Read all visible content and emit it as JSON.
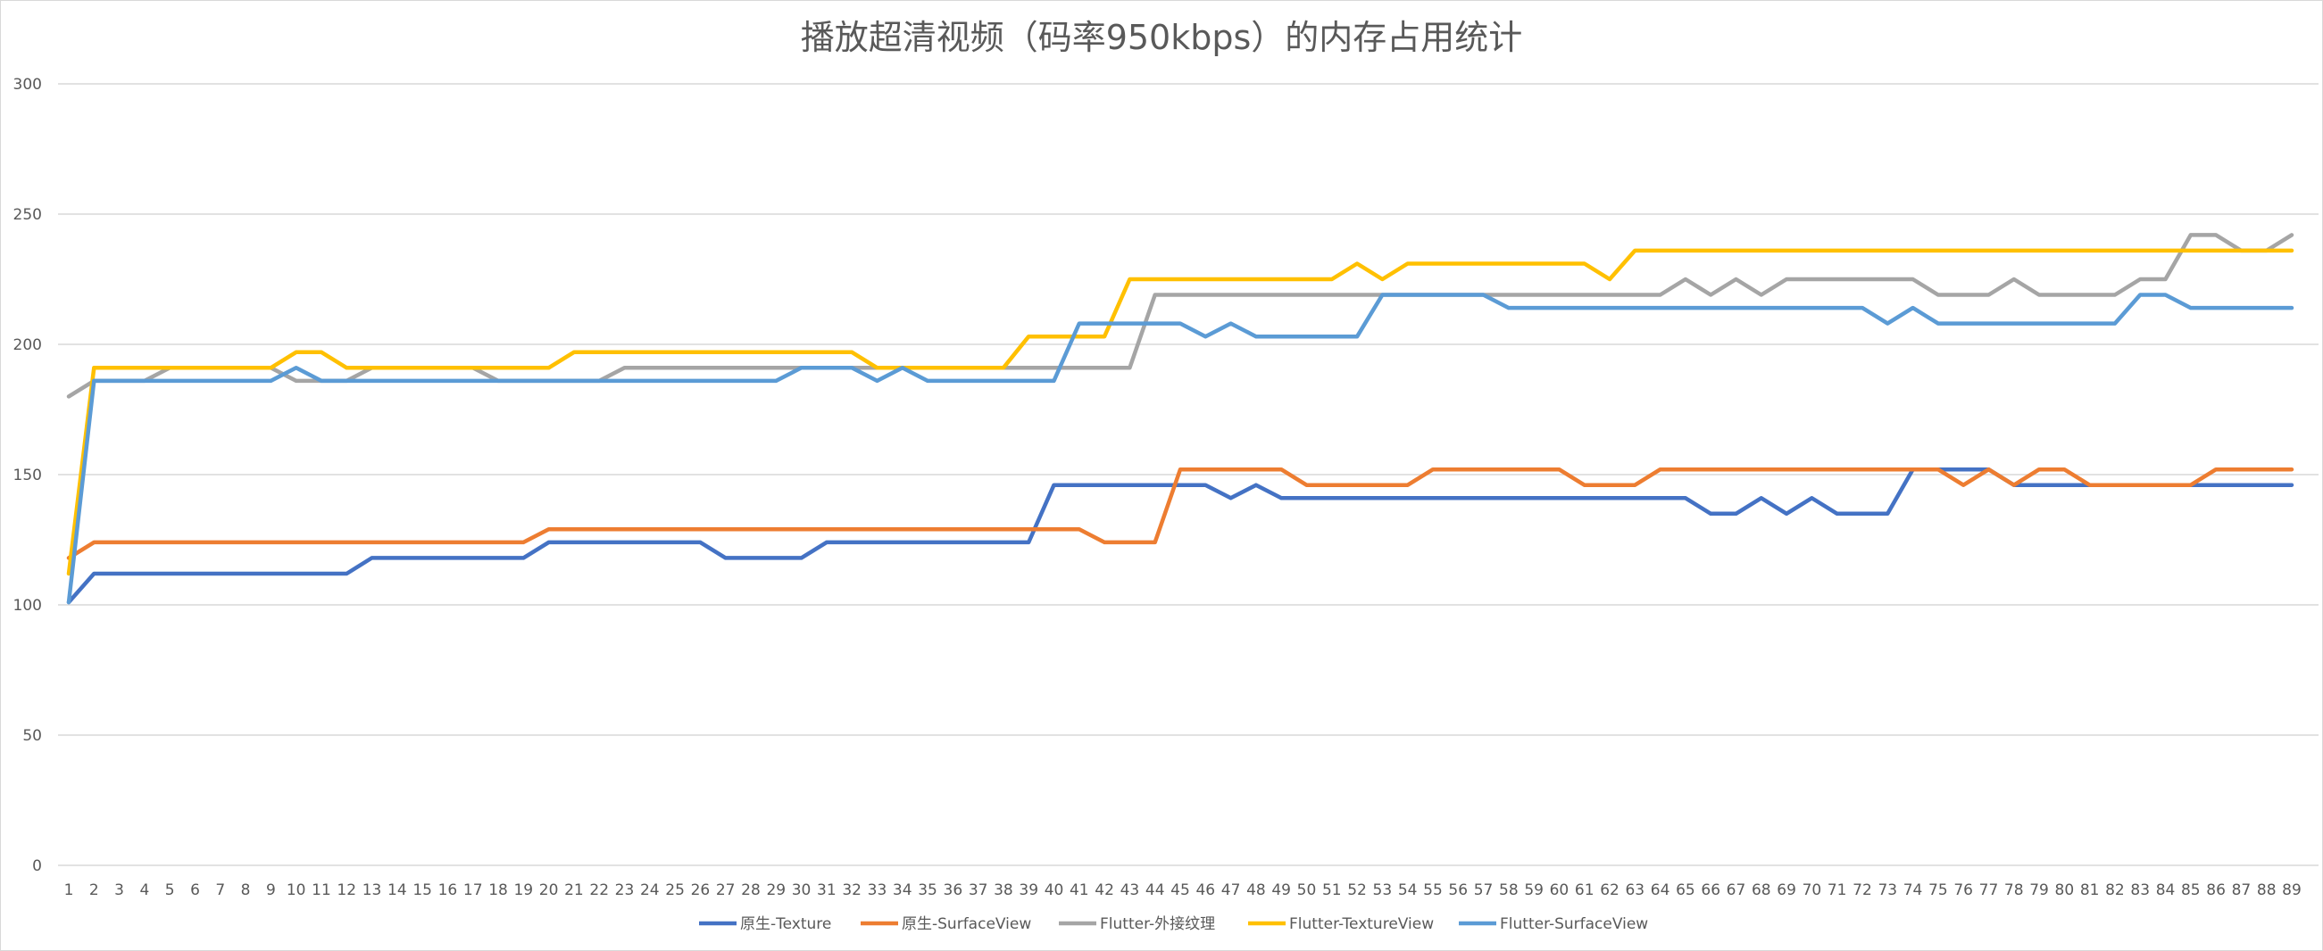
{
  "chart_data": {
    "type": "line",
    "title": "播放超清视频（码率950kbps）的内存占用统计",
    "xlabel": "",
    "ylabel": "",
    "ylim": [
      0,
      300
    ],
    "yticks": [
      0,
      50,
      100,
      150,
      200,
      250,
      300
    ],
    "grid": "horizontal",
    "legend_position": "bottom",
    "categories": [
      "1",
      "2",
      "3",
      "4",
      "5",
      "6",
      "7",
      "8",
      "9",
      "10",
      "11",
      "12",
      "13",
      "14",
      "15",
      "16",
      "17",
      "18",
      "19",
      "20",
      "21",
      "22",
      "23",
      "24",
      "25",
      "26",
      "27",
      "28",
      "29",
      "30",
      "31",
      "32",
      "33",
      "34",
      "35",
      "36",
      "37",
      "38",
      "39",
      "40",
      "41",
      "42",
      "43",
      "44",
      "45",
      "46",
      "47",
      "48",
      "49",
      "50",
      "51",
      "52",
      "53",
      "54",
      "55",
      "56",
      "57",
      "58",
      "59",
      "60",
      "61",
      "62",
      "63",
      "64",
      "65",
      "66",
      "67",
      "68",
      "69",
      "70",
      "71",
      "72",
      "73",
      "74",
      "75",
      "76",
      "77",
      "78",
      "79",
      "80",
      "81",
      "82",
      "83",
      "84",
      "85",
      "86",
      "87",
      "88",
      "89"
    ],
    "series": [
      {
        "name": "原生-Texture",
        "color": "#4472C4",
        "values": [
          101,
          112,
          112,
          112,
          112,
          112,
          112,
          112,
          112,
          112,
          112,
          112,
          118,
          118,
          118,
          118,
          118,
          118,
          118,
          124,
          124,
          124,
          124,
          124,
          124,
          124,
          118,
          118,
          118,
          118,
          124,
          124,
          124,
          124,
          124,
          124,
          124,
          124,
          124,
          146,
          146,
          146,
          146,
          146,
          146,
          146,
          141,
          146,
          141,
          141,
          141,
          141,
          141,
          141,
          141,
          141,
          141,
          141,
          141,
          141,
          141,
          141,
          141,
          141,
          141,
          135,
          135,
          141,
          135,
          141,
          135,
          135,
          135,
          152,
          152,
          152,
          152,
          146,
          146,
          146,
          146,
          146,
          146,
          146,
          146,
          146,
          146,
          146,
          146
        ]
      },
      {
        "name": "原生-SurfaceView",
        "color": "#ED7D31",
        "values": [
          118,
          124,
          124,
          124,
          124,
          124,
          124,
          124,
          124,
          124,
          124,
          124,
          124,
          124,
          124,
          124,
          124,
          124,
          124,
          129,
          129,
          129,
          129,
          129,
          129,
          129,
          129,
          129,
          129,
          129,
          129,
          129,
          129,
          129,
          129,
          129,
          129,
          129,
          129,
          129,
          129,
          124,
          124,
          124,
          152,
          152,
          152,
          152,
          152,
          146,
          146,
          146,
          146,
          146,
          152,
          152,
          152,
          152,
          152,
          152,
          146,
          146,
          146,
          152,
          152,
          152,
          152,
          152,
          152,
          152,
          152,
          152,
          152,
          152,
          152,
          146,
          152,
          146,
          152,
          152,
          146,
          146,
          146,
          146,
          146,
          152,
          152,
          152,
          152
        ]
      },
      {
        "name": "Flutter-外接纹理",
        "color": "#A5A5A5",
        "values": [
          180,
          186,
          186,
          186,
          191,
          191,
          191,
          191,
          191,
          186,
          186,
          186,
          191,
          191,
          191,
          191,
          191,
          186,
          186,
          186,
          186,
          186,
          191,
          191,
          191,
          191,
          191,
          191,
          191,
          191,
          191,
          191,
          191,
          191,
          191,
          191,
          191,
          191,
          191,
          191,
          191,
          191,
          191,
          219,
          219,
          219,
          219,
          219,
          219,
          219,
          219,
          219,
          219,
          219,
          219,
          219,
          219,
          219,
          219,
          219,
          219,
          219,
          219,
          219,
          225,
          219,
          225,
          219,
          225,
          225,
          225,
          225,
          225,
          225,
          219,
          219,
          219,
          225,
          219,
          219,
          219,
          219,
          225,
          225,
          242,
          242,
          236,
          236,
          242
        ]
      },
      {
        "name": "Flutter-TextureView",
        "color": "#FFC000",
        "values": [
          112,
          191,
          191,
          191,
          191,
          191,
          191,
          191,
          191,
          197,
          197,
          191,
          191,
          191,
          191,
          191,
          191,
          191,
          191,
          191,
          197,
          197,
          197,
          197,
          197,
          197,
          197,
          197,
          197,
          197,
          197,
          197,
          191,
          191,
          191,
          191,
          191,
          191,
          203,
          203,
          203,
          203,
          225,
          225,
          225,
          225,
          225,
          225,
          225,
          225,
          225,
          231,
          225,
          231,
          231,
          231,
          231,
          231,
          231,
          231,
          231,
          225,
          236,
          236,
          236,
          236,
          236,
          236,
          236,
          236,
          236,
          236,
          236,
          236,
          236,
          236,
          236,
          236,
          236,
          236,
          236,
          236,
          236,
          236,
          236,
          236,
          236,
          236,
          236
        ]
      },
      {
        "name": "Flutter-SurfaceView",
        "color": "#5B9BD5",
        "values": [
          101,
          186,
          186,
          186,
          186,
          186,
          186,
          186,
          186,
          191,
          186,
          186,
          186,
          186,
          186,
          186,
          186,
          186,
          186,
          186,
          186,
          186,
          186,
          186,
          186,
          186,
          186,
          186,
          186,
          191,
          191,
          191,
          186,
          191,
          186,
          186,
          186,
          186,
          186,
          186,
          208,
          208,
          208,
          208,
          208,
          203,
          208,
          203,
          203,
          203,
          203,
          203,
          219,
          219,
          219,
          219,
          219,
          214,
          214,
          214,
          214,
          214,
          214,
          214,
          214,
          214,
          214,
          214,
          214,
          214,
          214,
          214,
          208,
          214,
          208,
          208,
          208,
          208,
          208,
          208,
          208,
          208,
          219,
          219,
          214,
          214,
          214,
          214,
          214
        ]
      }
    ]
  }
}
